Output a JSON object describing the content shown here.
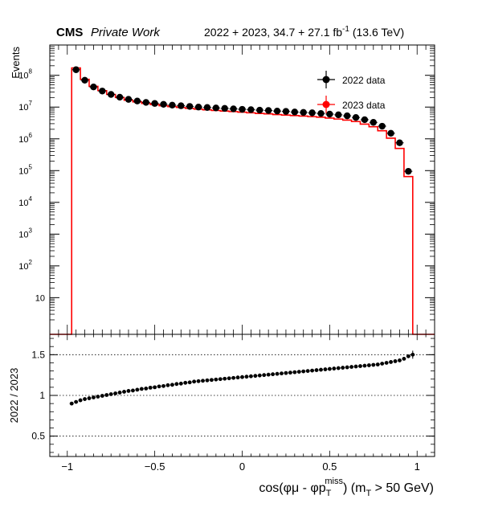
{
  "header": {
    "cms": "CMS",
    "private": "Private Work",
    "lumi_prefix": "2022 + 2023, 34.7 + 27.1 fb",
    "lumi_sup": "-1",
    "lumi_suffix": " (13.6 TeV)"
  },
  "chart_data": [
    {
      "type": "scatter",
      "ylabel": "Events",
      "yscale": "log",
      "xlim": [
        -1.1,
        1.1
      ],
      "ylim": [
        0.7,
        900000000
      ],
      "y_ticks": [
        {
          "label": "10",
          "exp": "8",
          "value": 100000000
        },
        {
          "label": "10",
          "exp": "7",
          "value": 10000000
        },
        {
          "label": "10",
          "exp": "6",
          "value": 1000000
        },
        {
          "label": "10",
          "exp": "5",
          "value": 100000
        },
        {
          "label": "10",
          "exp": "4",
          "value": 10000
        },
        {
          "label": "10",
          "exp": "3",
          "value": 1000
        },
        {
          "label": "10",
          "exp": "2",
          "value": 100
        },
        {
          "label": "10",
          "exp": "",
          "value": 10
        }
      ],
      "legend": {
        "position": "top-right",
        "entries": [
          "2022 data",
          "2023 data"
        ]
      },
      "x": [
        -0.95,
        -0.9,
        -0.85,
        -0.8,
        -0.75,
        -0.7,
        -0.65,
        -0.6,
        -0.55,
        -0.5,
        -0.45,
        -0.4,
        -0.35,
        -0.3,
        -0.25,
        -0.2,
        -0.15,
        -0.1,
        -0.05,
        0.0,
        0.05,
        0.1,
        0.15,
        0.2,
        0.25,
        0.3,
        0.35,
        0.4,
        0.45,
        0.5,
        0.55,
        0.6,
        0.65,
        0.7,
        0.75,
        0.8,
        0.85,
        0.9,
        0.95
      ],
      "series": [
        {
          "name": "2022 data",
          "color": "#000000",
          "values": [
            150000000,
            70000000,
            43000000,
            32000000,
            25000000,
            20500000,
            17500000,
            15500000,
            14000000,
            13000000,
            12200000,
            11500000,
            11000000,
            10500000,
            10000000,
            9700000,
            9400000,
            9100000,
            8800000,
            8500000,
            8300000,
            8000000,
            7800000,
            7500000,
            7300000,
            7000000,
            6800000,
            6600000,
            6300000,
            6000000,
            5700000,
            5300000,
            4700000,
            4000000,
            3300000,
            2500000,
            1500000,
            750000,
            95000
          ]
        },
        {
          "name": "2023 data",
          "color": "#ff0000",
          "values": [
            170000000,
            75000000,
            45000000,
            33000000,
            25000000,
            20000000,
            16500000,
            14500000,
            13000000,
            12000000,
            11000000,
            10300000,
            9700000,
            9100000,
            8600000,
            8200000,
            7800000,
            7500000,
            7200000,
            6900000,
            6600000,
            6300000,
            6100000,
            5800000,
            5600000,
            5400000,
            5200000,
            5000000,
            4800000,
            4500000,
            4200000,
            3900000,
            3500000,
            2900000,
            2400000,
            1800000,
            1050000,
            500000,
            65000
          ]
        }
      ]
    },
    {
      "type": "scatter",
      "xlabel": "cos(φμ - φp",
      "xlabel_sup": "miss",
      "xlabel_sub": "T",
      "xlabel_mid": ") (m",
      "xlabel_sub2": "T",
      "xlabel_end": " > 50 GeV)",
      "ylabel": "2022 / 2023",
      "xlim": [
        -1.1,
        1.1
      ],
      "ylim": [
        0.25,
        1.75
      ],
      "x_ticks": [
        {
          "label": "−1",
          "value": -1
        },
        {
          "label": "−0.5",
          "value": -0.5
        },
        {
          "label": "0",
          "value": 0
        },
        {
          "label": "0.5",
          "value": 0.5
        },
        {
          "label": "1",
          "value": 1
        }
      ],
      "y_ticks": [
        {
          "label": "1.5",
          "value": 1.5
        },
        {
          "label": "1",
          "value": 1.0
        },
        {
          "label": "0.5",
          "value": 0.5
        }
      ],
      "grid_lines": [
        0.5,
        1.0,
        1.5
      ],
      "x": [
        -0.975,
        -0.95,
        -0.925,
        -0.9,
        -0.875,
        -0.85,
        -0.825,
        -0.8,
        -0.775,
        -0.75,
        -0.725,
        -0.7,
        -0.675,
        -0.65,
        -0.625,
        -0.6,
        -0.575,
        -0.55,
        -0.525,
        -0.5,
        -0.475,
        -0.45,
        -0.425,
        -0.4,
        -0.375,
        -0.35,
        -0.325,
        -0.3,
        -0.275,
        -0.25,
        -0.225,
        -0.2,
        -0.175,
        -0.15,
        -0.125,
        -0.1,
        -0.075,
        -0.05,
        -0.025,
        0.0,
        0.025,
        0.05,
        0.075,
        0.1,
        0.125,
        0.15,
        0.175,
        0.2,
        0.225,
        0.25,
        0.275,
        0.3,
        0.325,
        0.35,
        0.375,
        0.4,
        0.425,
        0.45,
        0.475,
        0.5,
        0.525,
        0.55,
        0.575,
        0.6,
        0.625,
        0.65,
        0.675,
        0.7,
        0.725,
        0.75,
        0.775,
        0.8,
        0.825,
        0.85,
        0.875,
        0.9,
        0.925,
        0.95,
        0.975
      ],
      "series": [
        {
          "name": "2022 / 2023",
          "color": "#000000",
          "values": [
            0.9,
            0.92,
            0.94,
            0.955,
            0.965,
            0.975,
            0.985,
            0.995,
            1.005,
            1.015,
            1.025,
            1.035,
            1.045,
            1.055,
            1.06,
            1.07,
            1.08,
            1.085,
            1.095,
            1.1,
            1.11,
            1.115,
            1.125,
            1.13,
            1.14,
            1.145,
            1.155,
            1.16,
            1.17,
            1.175,
            1.18,
            1.185,
            1.19,
            1.195,
            1.2,
            1.205,
            1.21,
            1.215,
            1.22,
            1.225,
            1.23,
            1.235,
            1.24,
            1.245,
            1.25,
            1.255,
            1.26,
            1.265,
            1.27,
            1.275,
            1.28,
            1.285,
            1.29,
            1.295,
            1.3,
            1.305,
            1.31,
            1.315,
            1.32,
            1.325,
            1.33,
            1.335,
            1.34,
            1.345,
            1.35,
            1.355,
            1.36,
            1.365,
            1.37,
            1.375,
            1.38,
            1.39,
            1.4,
            1.41,
            1.42,
            1.43,
            1.45,
            1.48,
            1.5
          ]
        }
      ]
    }
  ]
}
